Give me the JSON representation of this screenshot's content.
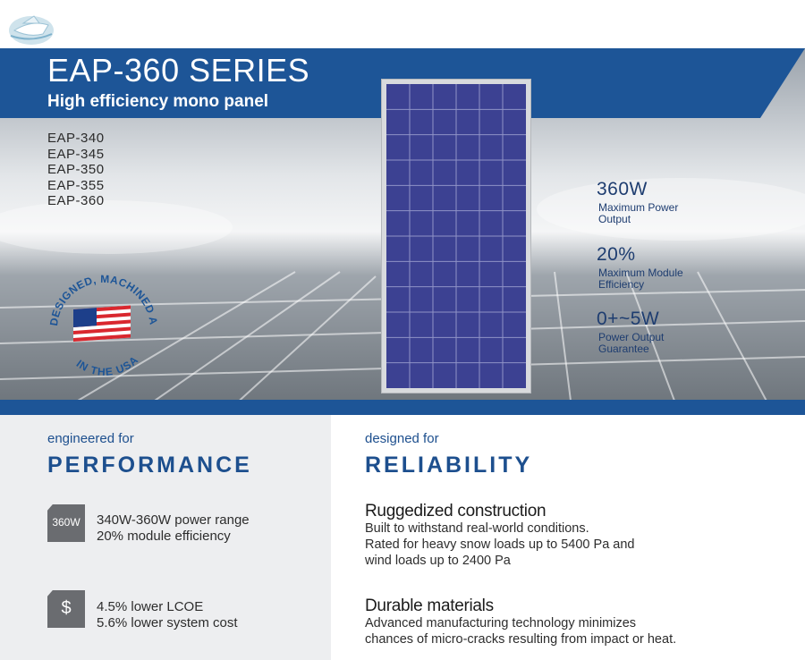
{
  "hero": {
    "title": "EAP-360 SERIES",
    "subtitle": "High efficiency mono panel",
    "models": [
      "EAP-340",
      "EAP-345",
      "EAP-350",
      "EAP-355",
      "EAP-360"
    ],
    "badge_arc_text": "DESIGNED, MACHINED AND ASSEMBLED",
    "badge_bottom_text": "IN THE USA",
    "specs": [
      {
        "value": "360W",
        "label_line1": "Maximum Power",
        "label_line2": "Output"
      },
      {
        "value": "20%",
        "label_line1": "Maximum Module",
        "label_line2": "Efficiency"
      },
      {
        "value": "0+~5W",
        "label_line1": "Power Output",
        "label_line2": "Guarantee"
      }
    ]
  },
  "performance": {
    "pre": "engineered for",
    "heading": "PERFORMANCE",
    "features": [
      {
        "icon_text": "360W",
        "icon_name": "power-rating-icon",
        "line1": "340W-360W power range",
        "line2": "20% module efficiency"
      },
      {
        "icon_text": "$",
        "icon_name": "dollar-icon",
        "line1": "4.5% lower LCOE",
        "line2": "5.6% lower system cost"
      }
    ]
  },
  "reliability": {
    "pre": "designed for",
    "heading": "RELIABILITY",
    "items": [
      {
        "title": "Ruggedized construction",
        "lines": [
          "Built to withstand real-world conditions.",
          "Rated for heavy snow loads up to 5400 Pa and",
          "wind loads up to 2400 Pa"
        ]
      },
      {
        "title": "Durable materials",
        "lines": [
          "Advanced manufacturing technology minimizes",
          "chances of micro-cracks resulting from impact or heat."
        ]
      }
    ]
  },
  "colors": {
    "brand_blue": "#1d5597",
    "navy_text": "#1e3d70",
    "icon_gray": "#6a6c70",
    "panel_cell": "#3b3f8f"
  }
}
